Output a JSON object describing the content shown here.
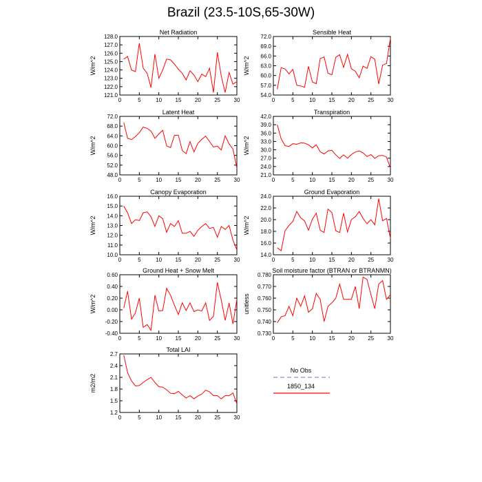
{
  "title": "Brazil (23.5-10S,65-30W)",
  "legend": {
    "entries": [
      {
        "name": "No Obs",
        "color": "#8c8cd8",
        "dash": true
      },
      {
        "name": "1850_134",
        "color": "#ff0000",
        "dash": false
      }
    ]
  },
  "chart_data": [
    {
      "type": "line",
      "title": "Net Radiation",
      "ylabel": "W/m^2",
      "xlim": [
        0,
        30
      ],
      "ylim": [
        121,
        128
      ],
      "yticks": [
        "121.0",
        "122.0",
        "123.0",
        "124.0",
        "125.0",
        "126.0",
        "127.0",
        "128.0"
      ],
      "xticks": [
        "0",
        "5",
        "10",
        "15",
        "20",
        "25",
        "30"
      ],
      "series": [
        {
          "color": "#ff0000",
          "x": [
            1,
            2,
            3,
            4,
            5,
            6,
            7,
            8,
            9,
            10,
            11,
            12,
            13,
            14,
            15,
            16,
            17,
            18,
            19,
            20,
            21,
            22,
            23,
            24,
            25,
            26,
            27,
            28,
            29,
            30
          ],
          "values": [
            125.3,
            125.6,
            124.0,
            123.8,
            127.2,
            124.2,
            123.6,
            121.9,
            125.9,
            123.0,
            124.0,
            125.3,
            125.2,
            124.7,
            124.1,
            123.6,
            122.8,
            123.9,
            123.4,
            122.6,
            123.5,
            123.2,
            124.2,
            121.3,
            126.1,
            123.3,
            121.3,
            123.7,
            122.3,
            122.6
          ]
        }
      ]
    },
    {
      "type": "line",
      "title": "Sensible Heat",
      "ylabel": "W/m^2",
      "xlim": [
        0,
        30
      ],
      "ylim": [
        54,
        72
      ],
      "yticks": [
        "54.0",
        "57.0",
        "60.0",
        "63.0",
        "66.0",
        "69.0",
        "72.0"
      ],
      "xticks": [
        "0",
        "5",
        "10",
        "15",
        "20",
        "25",
        "30"
      ],
      "series": [
        {
          "color": "#ff0000",
          "x": [
            1,
            2,
            3,
            4,
            5,
            6,
            7,
            8,
            9,
            10,
            11,
            12,
            13,
            14,
            15,
            16,
            17,
            18,
            19,
            20,
            21,
            22,
            23,
            24,
            25,
            26,
            27,
            28,
            29,
            30
          ],
          "values": [
            55.8,
            62.4,
            62.0,
            60.5,
            61.9,
            57.0,
            56.8,
            56.4,
            62.8,
            58.0,
            57.5,
            65.2,
            65.7,
            60.7,
            60.2,
            65.6,
            66.4,
            62.5,
            66.5,
            62.1,
            61.3,
            59.3,
            62.9,
            62.2,
            65.8,
            65.0,
            57.4,
            63.2,
            63.7,
            71.5
          ]
        }
      ]
    },
    {
      "type": "line",
      "title": "Latent Heat",
      "ylabel": "W/m^2",
      "xlim": [
        0,
        30
      ],
      "ylim": [
        48,
        72
      ],
      "yticks": [
        "48.0",
        "52.0",
        "56.0",
        "60.0",
        "64.0",
        "68.0",
        "72.0"
      ],
      "xticks": [
        "0",
        "5",
        "10",
        "15",
        "20",
        "25",
        "30"
      ],
      "series": [
        {
          "color": "#ff0000",
          "x": [
            1,
            2,
            3,
            4,
            5,
            6,
            7,
            8,
            9,
            10,
            11,
            12,
            13,
            14,
            15,
            16,
            17,
            18,
            19,
            20,
            21,
            22,
            23,
            24,
            25,
            26,
            27,
            28,
            29,
            30
          ],
          "values": [
            69.5,
            63.0,
            62.5,
            63.7,
            65.3,
            67.6,
            67.1,
            66.0,
            63.0,
            64.8,
            66.3,
            59.9,
            59.2,
            64.2,
            64.3,
            58.0,
            56.7,
            61.7,
            57.4,
            60.9,
            62.6,
            63.9,
            61.7,
            59.4,
            59.8,
            58.2,
            64.0,
            60.7,
            58.6,
            50.7
          ]
        }
      ]
    },
    {
      "type": "line",
      "title": "Transpiration",
      "ylabel": "W/m^2",
      "xlim": [
        0,
        30
      ],
      "ylim": [
        21,
        42
      ],
      "yticks": [
        "21.0",
        "24.0",
        "27.0",
        "30.0",
        "33.0",
        "36.0",
        "39.0",
        "42.0"
      ],
      "xticks": [
        "0",
        "5",
        "10",
        "15",
        "20",
        "25",
        "30"
      ],
      "series": [
        {
          "color": "#ff0000",
          "x": [
            1,
            2,
            3,
            4,
            5,
            6,
            7,
            8,
            9,
            10,
            11,
            12,
            13,
            14,
            15,
            16,
            17,
            18,
            19,
            20,
            21,
            22,
            23,
            24,
            25,
            26,
            27,
            28,
            29,
            30
          ],
          "values": [
            39.0,
            34.0,
            31.5,
            31.2,
            32.2,
            32.0,
            32.5,
            32.4,
            31.8,
            30.7,
            31.8,
            29.3,
            28.5,
            29.6,
            29.8,
            28.2,
            26.9,
            28.2,
            27.0,
            28.3,
            29.2,
            29.6,
            28.9,
            27.6,
            28.3,
            26.9,
            27.9,
            28.0,
            27.4,
            23.4
          ]
        }
      ]
    },
    {
      "type": "line",
      "title": "Canopy Evaporation",
      "ylabel": "W/m^2",
      "xlim": [
        0,
        30
      ],
      "ylim": [
        10,
        16
      ],
      "yticks": [
        "10.0",
        "11.0",
        "12.0",
        "13.0",
        "14.0",
        "15.0",
        "16.0"
      ],
      "xticks": [
        "0",
        "5",
        "10",
        "15",
        "20",
        "25",
        "30"
      ],
      "series": [
        {
          "color": "#ff0000",
          "x": [
            1,
            2,
            3,
            4,
            5,
            6,
            7,
            8,
            9,
            10,
            11,
            12,
            13,
            14,
            15,
            16,
            17,
            18,
            19,
            20,
            21,
            22,
            23,
            24,
            25,
            26,
            27,
            28,
            29,
            30
          ],
          "values": [
            15.0,
            14.3,
            13.2,
            13.6,
            13.5,
            14.3,
            14.4,
            13.9,
            12.9,
            14.0,
            13.7,
            12.3,
            13.2,
            12.9,
            13.5,
            12.2,
            12.2,
            12.4,
            11.9,
            12.5,
            12.9,
            13.2,
            12.7,
            12.8,
            11.8,
            12.9,
            12.6,
            13.0,
            11.5,
            10.5
          ]
        }
      ]
    },
    {
      "type": "line",
      "title": "Ground Evaporation",
      "ylabel": "W/m^2",
      "xlim": [
        0,
        30
      ],
      "ylim": [
        14,
        24
      ],
      "yticks": [
        "14.0",
        "16.0",
        "18.0",
        "20.0",
        "22.0",
        "24.0"
      ],
      "xticks": [
        "0",
        "5",
        "10",
        "15",
        "20",
        "25",
        "30"
      ],
      "series": [
        {
          "color": "#ff0000",
          "x": [
            1,
            2,
            3,
            4,
            5,
            6,
            7,
            8,
            9,
            10,
            11,
            12,
            13,
            14,
            15,
            16,
            17,
            18,
            19,
            20,
            21,
            22,
            23,
            24,
            25,
            26,
            27,
            28,
            29,
            30
          ],
          "values": [
            15.2,
            14.7,
            18.1,
            19.0,
            19.7,
            21.4,
            20.3,
            19.8,
            18.2,
            20.1,
            21.1,
            18.2,
            17.8,
            21.8,
            21.2,
            18.1,
            17.8,
            21.1,
            17.9,
            20.0,
            20.5,
            21.4,
            20.2,
            19.3,
            20.0,
            19.1,
            23.6,
            19.8,
            20.2,
            16.8
          ]
        }
      ]
    },
    {
      "type": "line",
      "title": "Ground Heat + Snow Melt",
      "ylabel": "W/m^2",
      "xlim": [
        0,
        30
      ],
      "ylim": [
        -0.4,
        0.6
      ],
      "yticks": [
        "-0.40",
        "-0.20",
        "0.00",
        "0.20",
        "0.40",
        "0.60"
      ],
      "xticks": [
        "0",
        "5",
        "10",
        "15",
        "20",
        "25",
        "30"
      ],
      "series": [
        {
          "color": "#ff0000",
          "x": [
            1,
            2,
            3,
            4,
            5,
            6,
            7,
            8,
            9,
            10,
            11,
            12,
            13,
            14,
            15,
            16,
            17,
            18,
            19,
            20,
            21,
            22,
            23,
            24,
            25,
            26,
            27,
            28,
            29,
            30
          ],
          "values": [
            0.03,
            0.32,
            -0.16,
            -0.05,
            0.2,
            -0.3,
            -0.25,
            -0.35,
            0.25,
            -0.02,
            -0.01,
            0.37,
            0.25,
            0.08,
            -0.08,
            0.12,
            -0.01,
            0.12,
            -0.03,
            0.0,
            -0.02,
            0.12,
            -0.18,
            -0.11,
            0.47,
            0.17,
            -0.18,
            0.12,
            -0.24,
            0.18
          ]
        }
      ]
    },
    {
      "type": "line",
      "title": "Soil moisture factor (BTRAN or BTRANMN)",
      "ylabel": "unitless",
      "xlim": [
        0,
        30
      ],
      "ylim": [
        0.73,
        0.78
      ],
      "yticks": [
        "0.730",
        "0.740",
        "0.750",
        "0.760",
        "0.770",
        "0.780"
      ],
      "xticks": [
        "0",
        "5",
        "10",
        "15",
        "20",
        "25",
        "30"
      ],
      "series": [
        {
          "color": "#ff0000",
          "x": [
            1,
            2,
            3,
            4,
            5,
            6,
            7,
            8,
            9,
            10,
            11,
            12,
            13,
            14,
            15,
            16,
            17,
            18,
            19,
            20,
            21,
            22,
            23,
            24,
            25,
            26,
            27,
            28,
            29,
            30
          ],
          "values": [
            0.739,
            0.744,
            0.745,
            0.753,
            0.745,
            0.76,
            0.753,
            0.762,
            0.748,
            0.751,
            0.764,
            0.759,
            0.74,
            0.753,
            0.756,
            0.76,
            0.772,
            0.759,
            0.759,
            0.759,
            0.77,
            0.751,
            0.778,
            0.776,
            0.763,
            0.751,
            0.772,
            0.775,
            0.759,
            0.763
          ]
        }
      ]
    },
    {
      "type": "line",
      "title": "Total LAI",
      "ylabel": "m2/m2",
      "xlim": [
        0,
        30
      ],
      "ylim": [
        1.2,
        2.7
      ],
      "yticks": [
        "1.2",
        "1.5",
        "1.8",
        "2.1",
        "2.4",
        "2.7"
      ],
      "xticks": [
        "0",
        "5",
        "10",
        "15",
        "20",
        "25",
        "30"
      ],
      "series": [
        {
          "color": "#ff0000",
          "x": [
            1,
            2,
            3,
            4,
            5,
            6,
            7,
            8,
            9,
            10,
            11,
            12,
            13,
            14,
            15,
            16,
            17,
            18,
            19,
            20,
            21,
            22,
            23,
            24,
            25,
            26,
            27,
            28,
            29,
            30
          ],
          "values": [
            2.67,
            2.22,
            2.01,
            1.88,
            1.89,
            1.97,
            2.04,
            2.1,
            1.97,
            1.86,
            1.85,
            1.78,
            1.69,
            1.68,
            1.74,
            1.65,
            1.57,
            1.63,
            1.55,
            1.62,
            1.67,
            1.77,
            1.73,
            1.63,
            1.63,
            1.55,
            1.63,
            1.63,
            1.7,
            1.42
          ]
        }
      ]
    }
  ]
}
